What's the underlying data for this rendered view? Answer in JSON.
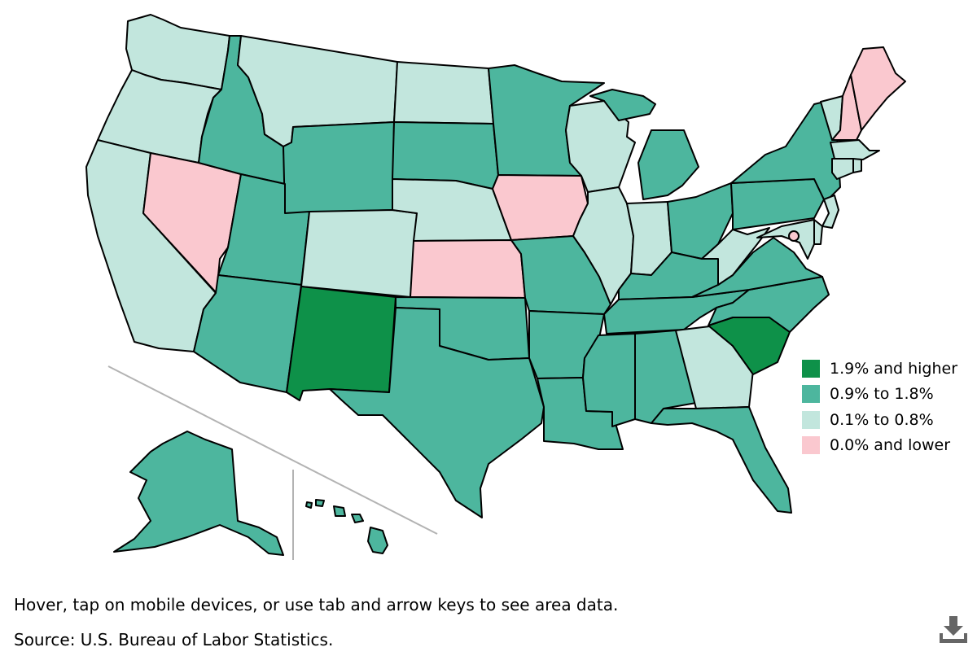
{
  "colors": {
    "high": "#0e9149",
    "mid": "#4db69e",
    "low": "#c2e6dd",
    "neg": "#fac8cf",
    "divider": "#b3b3b3",
    "icon": "#666666"
  },
  "legend": [
    {
      "label": "1.9% and higher",
      "level": "high"
    },
    {
      "label": "0.9% to 1.8%",
      "level": "mid"
    },
    {
      "label": "0.1% to 0.8%",
      "level": "low"
    },
    {
      "label": "0.0% and lower",
      "level": "neg"
    }
  ],
  "states": [
    {
      "name": "WA",
      "level": "low"
    },
    {
      "name": "OR",
      "level": "low"
    },
    {
      "name": "CA",
      "level": "low"
    },
    {
      "name": "NV",
      "level": "neg"
    },
    {
      "name": "ID",
      "level": "mid"
    },
    {
      "name": "MT",
      "level": "low"
    },
    {
      "name": "WY",
      "level": "mid"
    },
    {
      "name": "UT",
      "level": "mid"
    },
    {
      "name": "AZ",
      "level": "mid"
    },
    {
      "name": "CO",
      "level": "low"
    },
    {
      "name": "NM",
      "level": "high"
    },
    {
      "name": "ND",
      "level": "low"
    },
    {
      "name": "SD",
      "level": "mid"
    },
    {
      "name": "NE",
      "level": "low"
    },
    {
      "name": "KS",
      "level": "neg"
    },
    {
      "name": "OK",
      "level": "mid"
    },
    {
      "name": "TX",
      "level": "mid"
    },
    {
      "name": "MN",
      "level": "mid"
    },
    {
      "name": "IA",
      "level": "neg"
    },
    {
      "name": "MO",
      "level": "mid"
    },
    {
      "name": "AR",
      "level": "mid"
    },
    {
      "name": "LA",
      "level": "mid"
    },
    {
      "name": "WI",
      "level": "low"
    },
    {
      "name": "IL",
      "level": "low"
    },
    {
      "name": "MI",
      "level": "mid"
    },
    {
      "name": "IN",
      "level": "low"
    },
    {
      "name": "OH",
      "level": "mid"
    },
    {
      "name": "KY",
      "level": "mid"
    },
    {
      "name": "TN",
      "level": "mid"
    },
    {
      "name": "MS",
      "level": "mid"
    },
    {
      "name": "AL",
      "level": "mid"
    },
    {
      "name": "GA",
      "level": "low"
    },
    {
      "name": "FL",
      "level": "mid"
    },
    {
      "name": "SC",
      "level": "high"
    },
    {
      "name": "NC",
      "level": "mid"
    },
    {
      "name": "VA",
      "level": "mid"
    },
    {
      "name": "WV",
      "level": "low"
    },
    {
      "name": "PA",
      "level": "mid"
    },
    {
      "name": "NY",
      "level": "mid"
    },
    {
      "name": "VT",
      "level": "low"
    },
    {
      "name": "NH",
      "level": "neg"
    },
    {
      "name": "ME",
      "level": "neg"
    },
    {
      "name": "MA",
      "level": "low"
    },
    {
      "name": "CT",
      "level": "low"
    },
    {
      "name": "RI",
      "level": "low"
    },
    {
      "name": "NJ",
      "level": "low"
    },
    {
      "name": "DE",
      "level": "low"
    },
    {
      "name": "MD",
      "level": "low"
    },
    {
      "name": "DC",
      "level": "neg"
    },
    {
      "name": "AK",
      "level": "mid"
    },
    {
      "name": "HI",
      "level": "mid"
    }
  ],
  "note": "Hover, tap on mobile devices, or use tab and arrow keys to see area data.",
  "source": "Source: U.S. Bureau of Labor Statistics.",
  "download_icon": "download-icon"
}
